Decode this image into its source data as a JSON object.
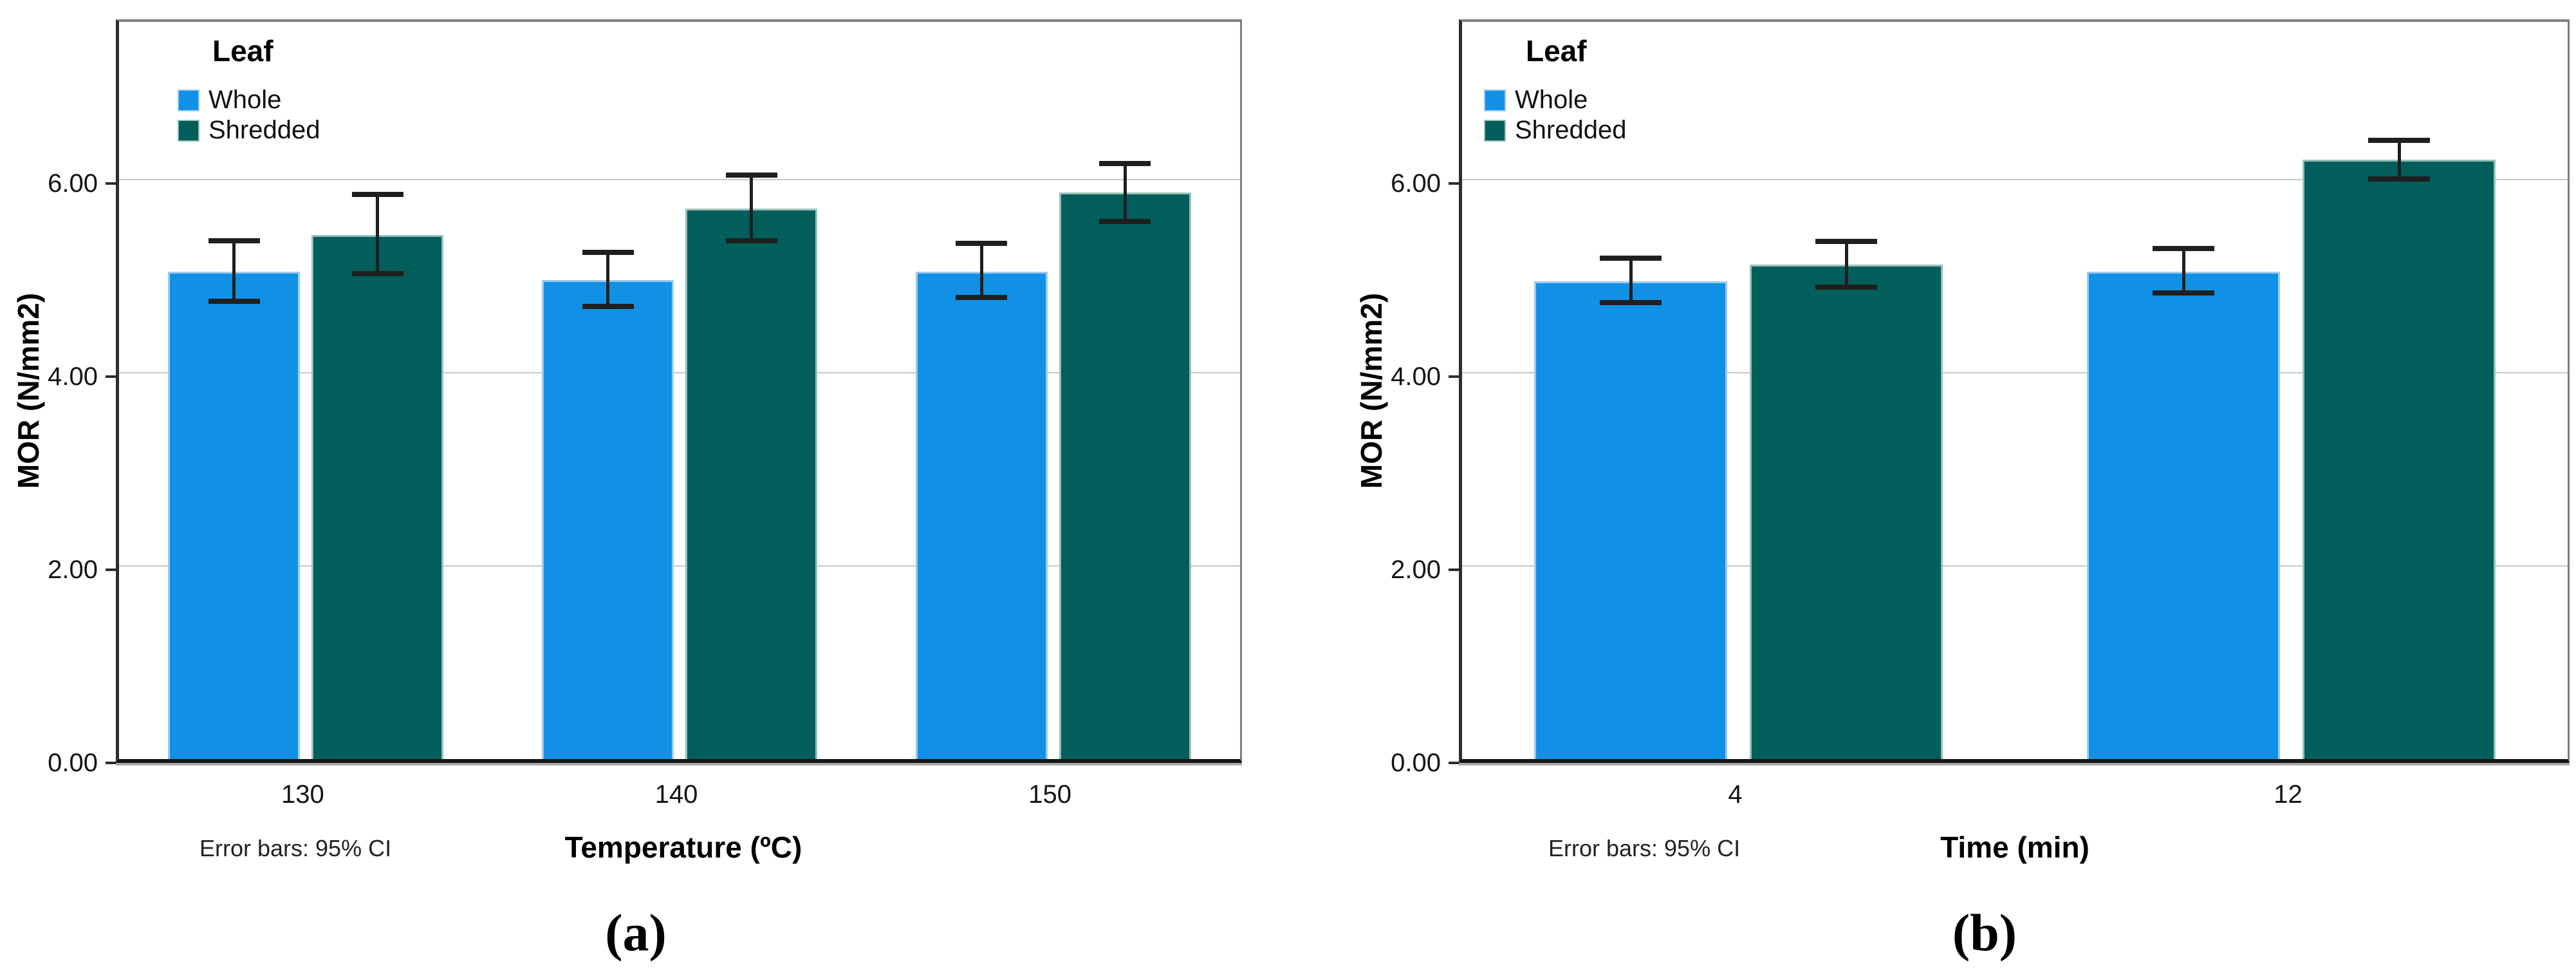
{
  "style": {
    "series_colors": [
      "#1191E5",
      "#015E5B"
    ],
    "series_border_colors": [
      "#9ACBEF",
      "#98C0BC"
    ],
    "grid_color": "#C8C8C8",
    "frame_color": "#7F7F7F",
    "axis_color": "#2E2E2E",
    "error_bar_color": "#1F1F1F"
  },
  "chart_data": [
    {
      "type": "bar",
      "panel": "(a)",
      "legend_title": "Leaf",
      "legend_position": "top-left-inside",
      "ylabel": "MOR (N/mm2)",
      "xlabel": "Temperature (ºC)",
      "footnote": "Error bars: 95% CI",
      "yticks": [
        "0.00",
        "2.00",
        "4.00",
        "6.00"
      ],
      "ylim": [
        0,
        7.7
      ],
      "grid": true,
      "categories": [
        "130",
        "140",
        "150"
      ],
      "series": [
        {
          "name": "Whole",
          "values": [
            5.05,
            4.96,
            5.05
          ],
          "ci_low": [
            4.74,
            4.69,
            4.78
          ],
          "ci_high": [
            5.37,
            5.25,
            5.34
          ]
        },
        {
          "name": "Shredded",
          "values": [
            5.43,
            5.7,
            5.87
          ],
          "ci_low": [
            5.03,
            5.37,
            5.57
          ],
          "ci_high": [
            5.85,
            6.05,
            6.17
          ]
        }
      ]
    },
    {
      "type": "bar",
      "panel": "(b)",
      "legend_title": "Leaf",
      "legend_position": "top-left-inside",
      "ylabel": "MOR (N/mm2)",
      "xlabel": "Time (min)",
      "footnote": "Error bars: 95% CI",
      "yticks": [
        "0.00",
        "2.00",
        "4.00",
        "6.00"
      ],
      "ylim": [
        0,
        7.7
      ],
      "grid": true,
      "categories": [
        "4",
        "12"
      ],
      "series": [
        {
          "name": "Whole",
          "values": [
            4.95,
            5.05
          ],
          "ci_low": [
            4.73,
            4.83
          ],
          "ci_high": [
            5.19,
            5.29
          ]
        },
        {
          "name": "Shredded",
          "values": [
            5.12,
            6.21
          ],
          "ci_low": [
            4.89,
            6.01
          ],
          "ci_high": [
            5.36,
            6.41
          ]
        }
      ]
    }
  ]
}
